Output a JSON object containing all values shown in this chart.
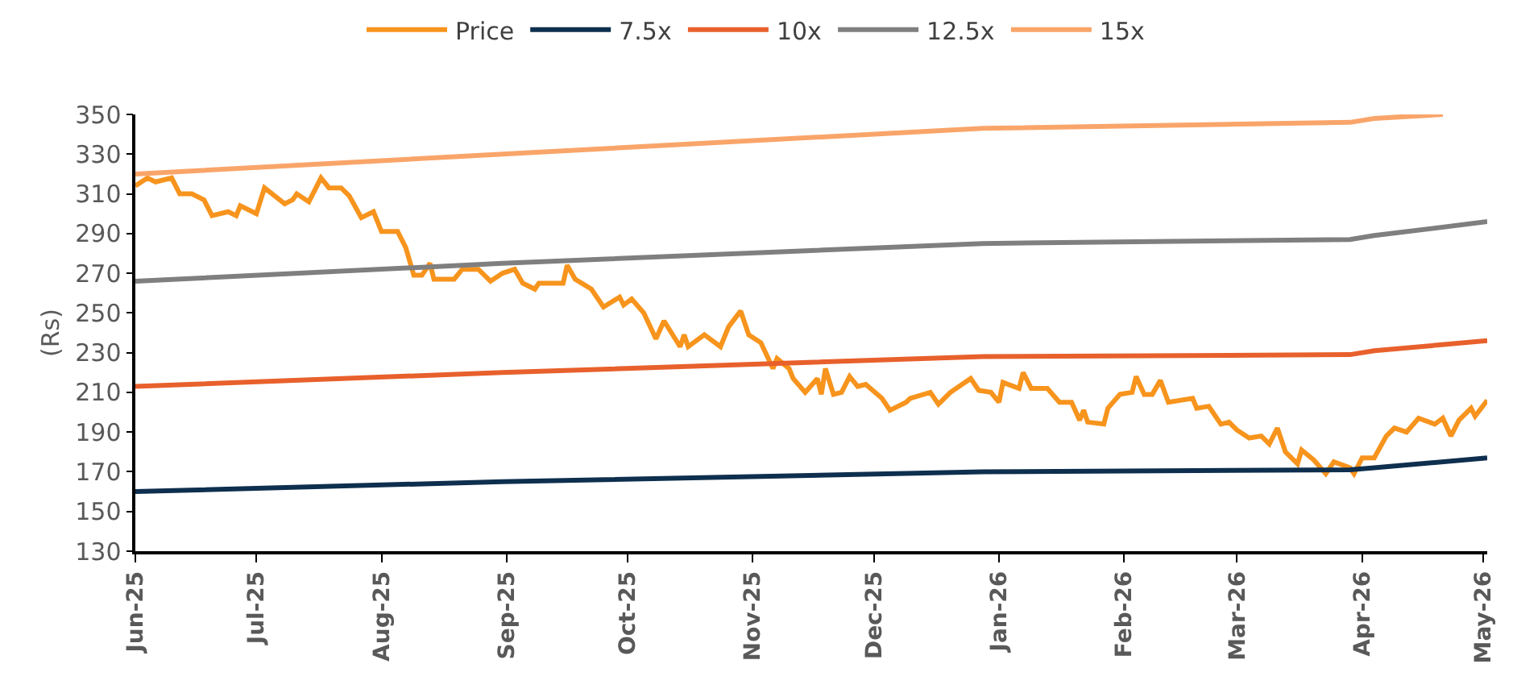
{
  "chart_data": {
    "type": "line",
    "ylabel": "(Rs)",
    "legend": "top",
    "grid": false,
    "marker": "none",
    "line_style": "solid",
    "ylim": [
      130,
      350
    ],
    "yticks": [
      130,
      150,
      170,
      190,
      210,
      230,
      250,
      270,
      290,
      310,
      330,
      350
    ],
    "xlim": [
      "2025-06-01",
      "2026-05-02"
    ],
    "xticks": [
      {
        "value": "2025-06-01",
        "label": "Jun-25"
      },
      {
        "value": "2025-07-01",
        "label": "Jul-25"
      },
      {
        "value": "2025-08-01",
        "label": "Aug-25"
      },
      {
        "value": "2025-09-01",
        "label": "Sep-25"
      },
      {
        "value": "2025-10-01",
        "label": "Oct-25"
      },
      {
        "value": "2025-11-01",
        "label": "Nov-25"
      },
      {
        "value": "2025-12-01",
        "label": "Dec-25"
      },
      {
        "value": "2026-01-01",
        "label": "Jan-26"
      },
      {
        "value": "2026-02-01",
        "label": "Feb-26"
      },
      {
        "value": "2026-03-01",
        "label": "Mar-26"
      },
      {
        "value": "2026-04-01",
        "label": "Apr-26"
      },
      {
        "value": "2026-05-01",
        "label": "May-26"
      }
    ],
    "series": [
      {
        "name": "Price",
        "color": "#f7941d",
        "x": [
          "2025-06-01",
          "2025-06-04",
          "2025-06-06",
          "2025-06-10",
          "2025-06-12",
          "2025-06-15",
          "2025-06-18",
          "2025-06-20",
          "2025-06-24",
          "2025-06-26",
          "2025-06-27",
          "2025-07-01",
          "2025-07-03",
          "2025-07-08",
          "2025-07-10",
          "2025-07-11",
          "2025-07-14",
          "2025-07-17",
          "2025-07-19",
          "2025-07-22",
          "2025-07-24",
          "2025-07-27",
          "2025-07-30",
          "2025-08-01",
          "2025-08-05",
          "2025-08-07",
          "2025-08-09",
          "2025-08-11",
          "2025-08-13",
          "2025-08-14",
          "2025-08-19",
          "2025-08-21",
          "2025-08-25",
          "2025-08-28",
          "2025-08-31",
          "2025-09-03",
          "2025-09-05",
          "2025-09-08",
          "2025-09-09",
          "2025-09-15",
          "2025-09-16",
          "2025-09-18",
          "2025-09-22",
          "2025-09-25",
          "2025-09-29",
          "2025-09-30",
          "2025-10-02",
          "2025-10-05",
          "2025-10-08",
          "2025-10-10",
          "2025-10-14",
          "2025-10-15",
          "2025-10-16",
          "2025-10-20",
          "2025-10-24",
          "2025-10-26",
          "2025-10-29",
          "2025-10-31",
          "2025-11-03",
          "2025-11-06",
          "2025-11-07",
          "2025-11-10",
          "2025-11-11",
          "2025-11-14",
          "2025-11-17",
          "2025-11-18",
          "2025-11-19",
          "2025-11-21",
          "2025-11-23",
          "2025-11-25",
          "2025-11-27",
          "2025-11-29",
          "2025-12-03",
          "2025-12-05",
          "2025-12-09",
          "2025-12-10",
          "2025-12-15",
          "2025-12-17",
          "2025-12-20",
          "2025-12-25",
          "2025-12-27",
          "2025-12-30",
          "2026-01-01",
          "2026-01-02",
          "2026-01-06",
          "2026-01-07",
          "2026-01-09",
          "2026-01-13",
          "2026-01-16",
          "2026-01-19",
          "2026-01-21",
          "2026-01-22",
          "2026-01-23",
          "2026-01-27",
          "2026-01-28",
          "2026-01-31",
          "2026-02-03",
          "2026-02-04",
          "2026-02-06",
          "2026-02-08",
          "2026-02-10",
          "2026-02-12",
          "2026-02-18",
          "2026-02-19",
          "2026-02-22",
          "2026-02-25",
          "2026-02-27",
          "2026-03-01",
          "2026-03-04",
          "2026-03-07",
          "2026-03-09",
          "2026-03-11",
          "2026-03-13",
          "2026-03-16",
          "2026-03-17",
          "2026-03-20",
          "2026-03-23",
          "2026-03-25",
          "2026-03-29",
          "2026-03-30",
          "2026-04-01",
          "2026-04-04",
          "2026-04-07",
          "2026-04-09",
          "2026-04-12",
          "2026-04-15",
          "2026-04-19",
          "2026-04-21",
          "2026-04-23",
          "2026-04-25",
          "2026-04-28",
          "2026-04-29",
          "2026-05-02"
        ],
        "values": [
          314,
          318,
          316,
          318,
          310,
          310,
          307,
          299,
          301,
          299,
          304,
          300,
          313,
          305,
          307,
          310,
          306,
          318,
          313,
          313,
          309,
          298,
          301,
          291,
          291,
          283,
          269,
          269,
          275,
          267,
          267,
          272,
          272,
          266,
          270,
          272,
          265,
          262,
          265,
          265,
          274,
          267,
          262,
          253,
          258,
          254,
          257,
          250,
          237,
          246,
          233,
          239,
          233,
          239,
          233,
          243,
          251,
          239,
          235,
          222,
          227,
          222,
          217,
          210,
          217,
          209,
          222,
          209,
          210,
          218,
          213,
          214,
          207,
          201,
          205,
          207,
          210,
          204,
          210,
          217,
          211,
          210,
          205,
          215,
          212,
          220,
          212,
          212,
          205,
          205,
          196,
          201,
          195,
          194,
          202,
          209,
          210,
          218,
          209,
          209,
          216,
          205,
          207,
          202,
          203,
          194,
          195,
          191,
          187,
          188,
          184,
          192,
          180,
          174,
          181,
          176,
          169,
          175,
          172,
          169,
          177,
          177,
          188,
          192,
          190,
          197,
          194,
          197,
          188,
          196,
          202,
          198,
          206
        ]
      },
      {
        "name": "7.5x",
        "color": "#0e2f4e",
        "x": [
          "2025-06-01",
          "2025-08-31",
          "2025-12-28",
          "2026-03-29",
          "2026-04-04",
          "2026-05-02"
        ],
        "values": [
          160,
          165,
          170,
          171,
          172,
          177
        ]
      },
      {
        "name": "10x",
        "color": "#e8602c",
        "x": [
          "2025-06-01",
          "2025-08-31",
          "2025-12-28",
          "2026-03-29",
          "2026-04-04",
          "2026-05-02"
        ],
        "values": [
          213,
          220,
          228,
          229,
          231,
          236
        ]
      },
      {
        "name": "12.5x",
        "color": "#7f7f7f",
        "x": [
          "2025-06-01",
          "2025-08-31",
          "2025-12-28",
          "2026-03-29",
          "2026-04-04",
          "2026-05-02"
        ],
        "values": [
          266,
          275,
          285,
          287,
          289,
          296
        ]
      },
      {
        "name": "15x",
        "color": "#f9a56a",
        "x": [
          "2025-06-01",
          "2025-08-31",
          "2025-12-28",
          "2026-03-29",
          "2026-04-04",
          "2026-04-21"
        ],
        "values": [
          320,
          330,
          343,
          346,
          348,
          350
        ]
      }
    ]
  }
}
